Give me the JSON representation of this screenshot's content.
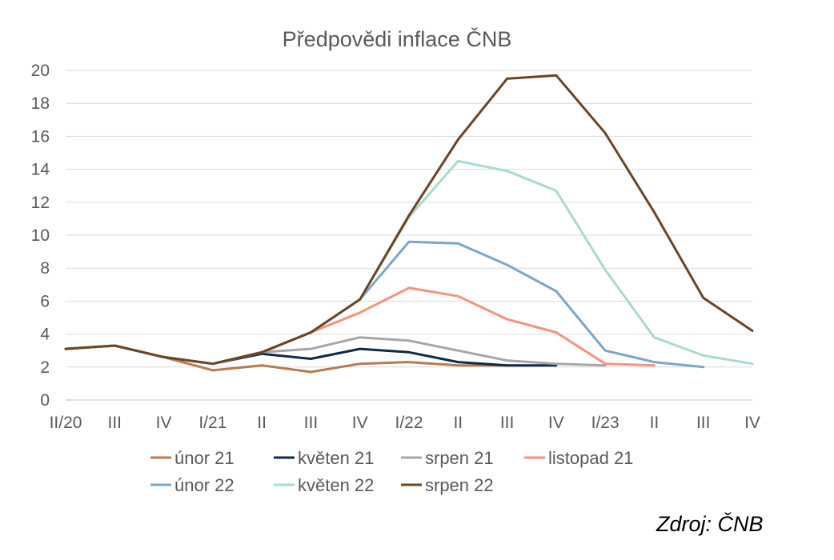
{
  "chart_data": {
    "type": "line",
    "title": "Předpovědi inflace ČNB",
    "source": "Zdroj: ČNB",
    "categories": [
      "II/20",
      "III",
      "IV",
      "I/21",
      "II",
      "III",
      "IV",
      "I/22",
      "II",
      "III",
      "IV",
      "I/23",
      "II",
      "III",
      "IV"
    ],
    "ylim": [
      0,
      20
    ],
    "yticks": [
      0,
      2,
      4,
      6,
      8,
      10,
      12,
      14,
      16,
      18,
      20
    ],
    "grid": true,
    "legend_position": "bottom",
    "series": [
      {
        "name": "únor 21",
        "color": "#b87a4e",
        "values": [
          3.1,
          3.3,
          2.6,
          1.8,
          2.1,
          1.7,
          2.2,
          2.3,
          2.1,
          2.1,
          null,
          null,
          null,
          null,
          null
        ]
      },
      {
        "name": "květen 21",
        "color": "#0d2a4a",
        "values": [
          3.1,
          3.3,
          2.6,
          2.2,
          2.8,
          2.5,
          3.1,
          2.9,
          2.3,
          2.1,
          2.1,
          null,
          null,
          null,
          null
        ]
      },
      {
        "name": "srpen 21",
        "color": "#a6a6a6",
        "values": [
          3.1,
          3.3,
          2.6,
          2.2,
          2.9,
          3.1,
          3.8,
          3.6,
          3.0,
          2.4,
          2.2,
          2.1,
          null,
          null,
          null
        ]
      },
      {
        "name": "listopad 21",
        "color": "#f4937c",
        "values": [
          3.1,
          3.3,
          2.6,
          2.2,
          2.9,
          4.1,
          5.3,
          6.8,
          6.3,
          4.9,
          4.1,
          2.2,
          2.1,
          null,
          null
        ]
      },
      {
        "name": "únor 22",
        "color": "#7aa6c8",
        "values": [
          3.1,
          3.3,
          2.6,
          2.2,
          2.9,
          4.1,
          6.1,
          9.6,
          9.5,
          8.2,
          6.6,
          3.0,
          2.3,
          2.0,
          null
        ]
      },
      {
        "name": "květen 22",
        "color": "#a8dcc4",
        "values": [
          3.1,
          3.3,
          2.6,
          2.2,
          2.9,
          4.1,
          6.1,
          11.1,
          14.5,
          13.9,
          12.7,
          7.9,
          3.8,
          2.7,
          2.2
        ]
      },
      {
        "name": "srpen 22",
        "color": "#6b4423",
        "values": [
          3.1,
          3.3,
          2.6,
          2.2,
          2.9,
          4.1,
          6.1,
          11.2,
          15.8,
          19.5,
          19.7,
          16.2,
          11.4,
          6.2,
          4.2
        ]
      }
    ]
  }
}
